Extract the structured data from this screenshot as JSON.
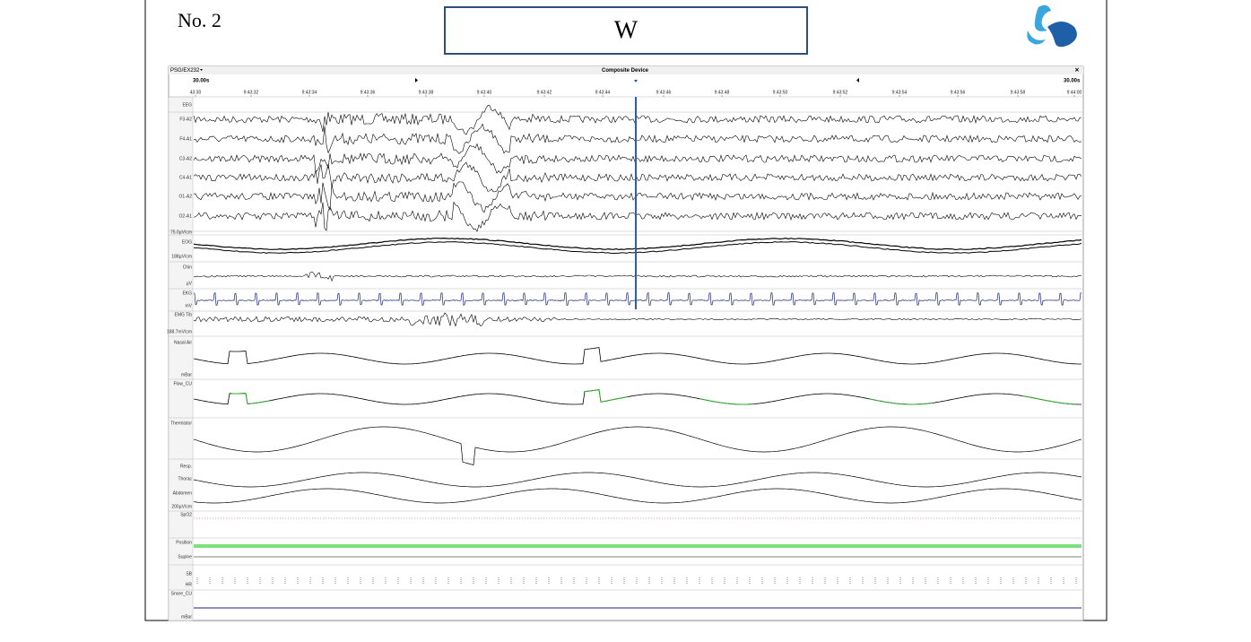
{
  "header": {
    "page_number": "No. 2",
    "stage": "W"
  },
  "window": {
    "title": "PSG/EX232",
    "device": "Composite Device",
    "close": "×",
    "span_left": "30.00s",
    "span_right": "30.00s"
  },
  "times": [
    "43:30",
    "9:43:32",
    "9:43:34",
    "9:43:36",
    "9:43:38",
    "9:43:40",
    "9:43:42",
    "9:43:44",
    "9:43:46",
    "9:43:48",
    "9:43:50",
    "9:43:52",
    "9:43:54",
    "9:43:56",
    "9:43:58",
    "9:44:00"
  ],
  "labels": [
    "EEG",
    "F3-A2",
    "F4-A1",
    "C3-A2",
    "C4-A1",
    "O1-A2",
    "O2-A1",
    "75.0µV/cm",
    "EOG",
    "188µV/cm",
    "Chin",
    "µV",
    "EKG",
    "mV",
    "EMG Tib",
    "188.7mV/cm",
    "Nasal Air",
    "mBar",
    "Flow_CU",
    "Thermistor",
    "Resp.",
    "Thorac",
    "Abdomen",
    "200µV/cm",
    "SpO2",
    "Position",
    "Supine",
    "SB",
    "HR",
    "Snore_CU",
    "mBar"
  ]
}
